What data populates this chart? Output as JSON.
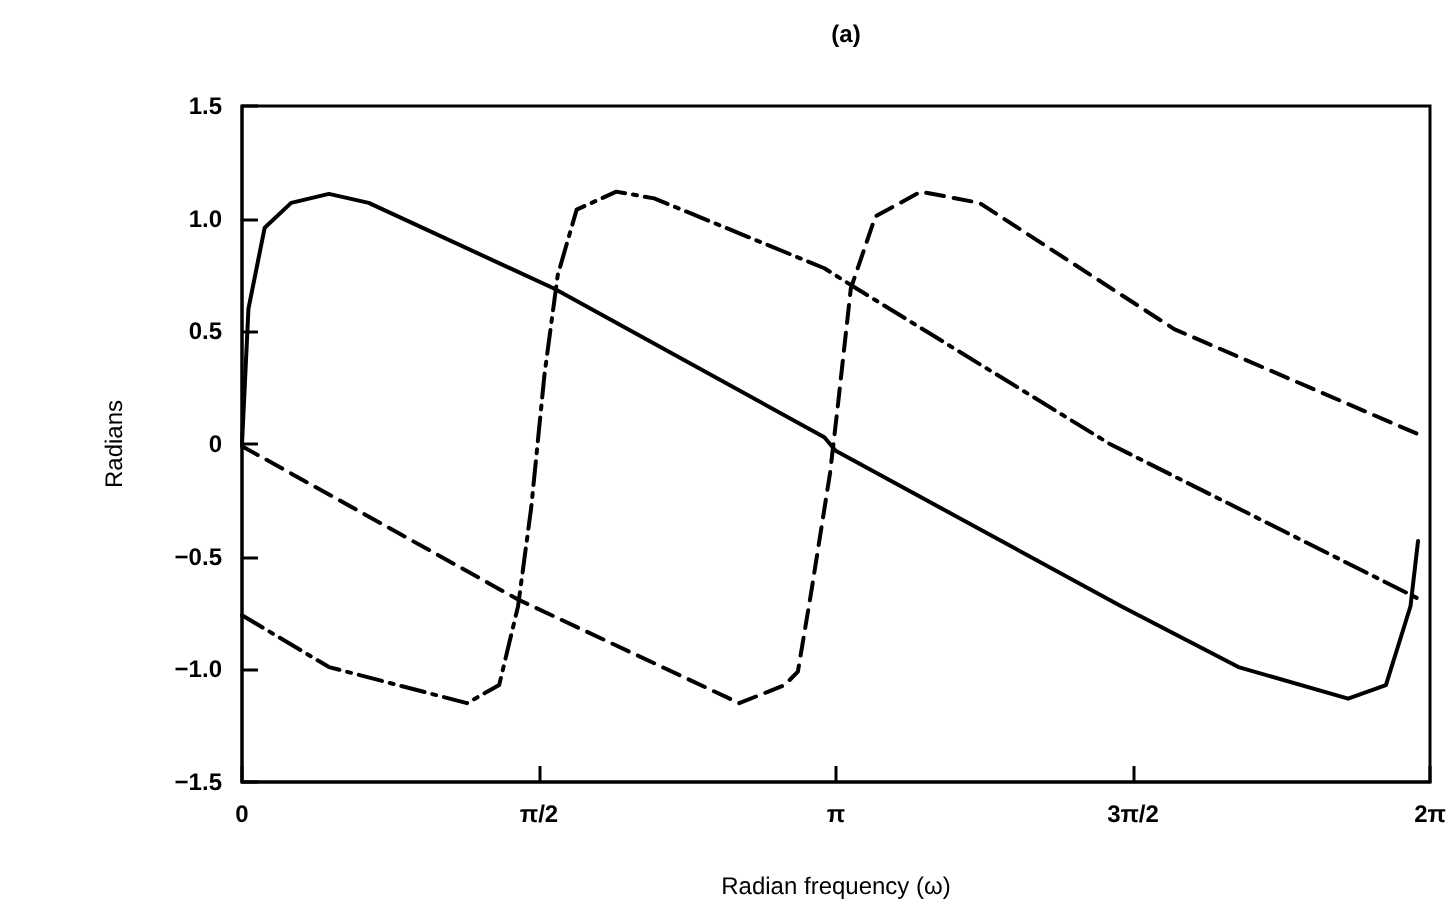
{
  "chart_data": {
    "type": "line",
    "title": "(a)",
    "xlabel": "Radian frequency (ω)",
    "ylabel": "Radians",
    "xlim": [
      0,
      6.2832
    ],
    "xticks": [
      0,
      {
        "value": 1.5708,
        "label": "π/2"
      },
      {
        "value": 3.1416,
        "label": "π"
      },
      {
        "value": 4.7124,
        "label": "3π/2"
      },
      {
        "value": 6.2832,
        "label": "2π"
      }
    ],
    "ylim": [
      -1.5,
      1.5
    ],
    "yticks": [
      {
        "value": -1.5,
        "label": "−1.5"
      },
      {
        "value": -1,
        "label": "−1.0"
      },
      {
        "value": -0.5,
        "label": "−0.5"
      },
      0,
      0.5,
      {
        "value": 1,
        "label": "1.0"
      },
      1.5
    ],
    "grid": false,
    "series": [
      {
        "color": "#000000",
        "line_style": "solid",
        "x": [
          0,
          0.034,
          0.12,
          0.26,
          0.46,
          0.67,
          1.65,
          3.08,
          3.14,
          4.65,
          5.27,
          5.85,
          6.05,
          6.18,
          6.22
        ],
        "values": [
          0,
          0.6,
          0.96,
          1.07,
          1.11,
          1.07,
          0.69,
          0.03,
          -0.03,
          -0.72,
          -0.99,
          -1.13,
          -1.07,
          -0.72,
          -0.43
        ]
      },
      {
        "color": "#000000",
        "line_style": "dashed",
        "x": [
          0,
          1.46,
          2.63,
          2.87,
          2.94,
          3.01,
          3.11,
          3.15,
          3.22,
          3.35,
          3.59,
          3.9,
          4.93,
          6.23
        ],
        "values": [
          -0.01,
          -0.69,
          -1.15,
          -1.07,
          -1.01,
          -0.66,
          -0.13,
          0.16,
          0.69,
          1.01,
          1.12,
          1.07,
          0.51,
          0.04
        ]
      },
      {
        "color": "#000000",
        "line_style": "dashdot",
        "x": [
          0,
          0.46,
          1.19,
          1.36,
          1.46,
          1.53,
          1.6,
          1.67,
          1.77,
          1.98,
          2.18,
          3.08,
          3.25,
          4.59,
          6.23
        ],
        "values": [
          -0.76,
          -0.99,
          -1.15,
          -1.07,
          -0.72,
          -0.28,
          0.31,
          0.75,
          1.04,
          1.12,
          1.09,
          0.78,
          0.69,
          0,
          -0.69
        ]
      }
    ]
  }
}
